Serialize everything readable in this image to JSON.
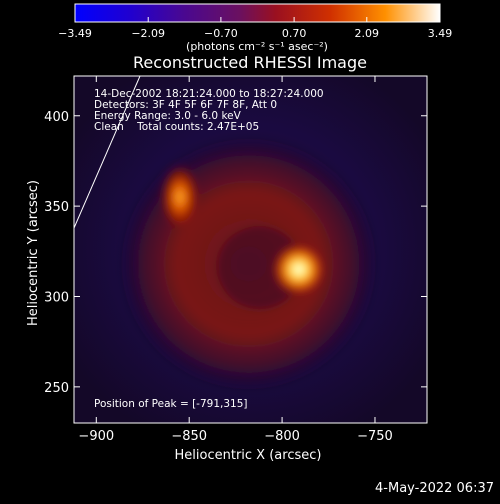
{
  "colorbar": {
    "ticks": [
      "-3.49",
      "-2.09",
      "-0.70",
      "0.70",
      "2.09",
      "3.49"
    ],
    "units_label": "(photons cm⁻² s⁻¹ asec⁻²)",
    "range": [
      -3.49,
      3.49
    ]
  },
  "chart_data": {
    "type": "heatmap",
    "title": "Reconstructed RHESSI Image",
    "xlabel": "Heliocentric X (arcsec)",
    "ylabel": "Heliocentric Y (arcsec)",
    "xlim": [
      -912,
      -722
    ],
    "ylim": [
      230,
      422
    ],
    "x_ticks": [
      -900,
      -850,
      -800,
      -750
    ],
    "y_ticks": [
      250,
      300,
      350,
      400
    ],
    "annotations": [
      "14-Dec-2002 18:21:24.000 to 18:27:24.000",
      "Detectors: 3F 4F 5F 6F 7F 8F, Att 0",
      "Energy Range: 3.0 - 6.0 keV",
      "Clean    Total counts: 2.47E+05"
    ],
    "peak_label": "Position of Peak = [-791,315]",
    "peak": {
      "x": -791,
      "y": 315
    },
    "sources": [
      {
        "x": -791,
        "y": 315,
        "intensity": 3.49
      },
      {
        "x": -855,
        "y": 355,
        "intensity": 2.2
      }
    ]
  },
  "footer": {
    "timestamp": "4-May-2022 06:37"
  }
}
